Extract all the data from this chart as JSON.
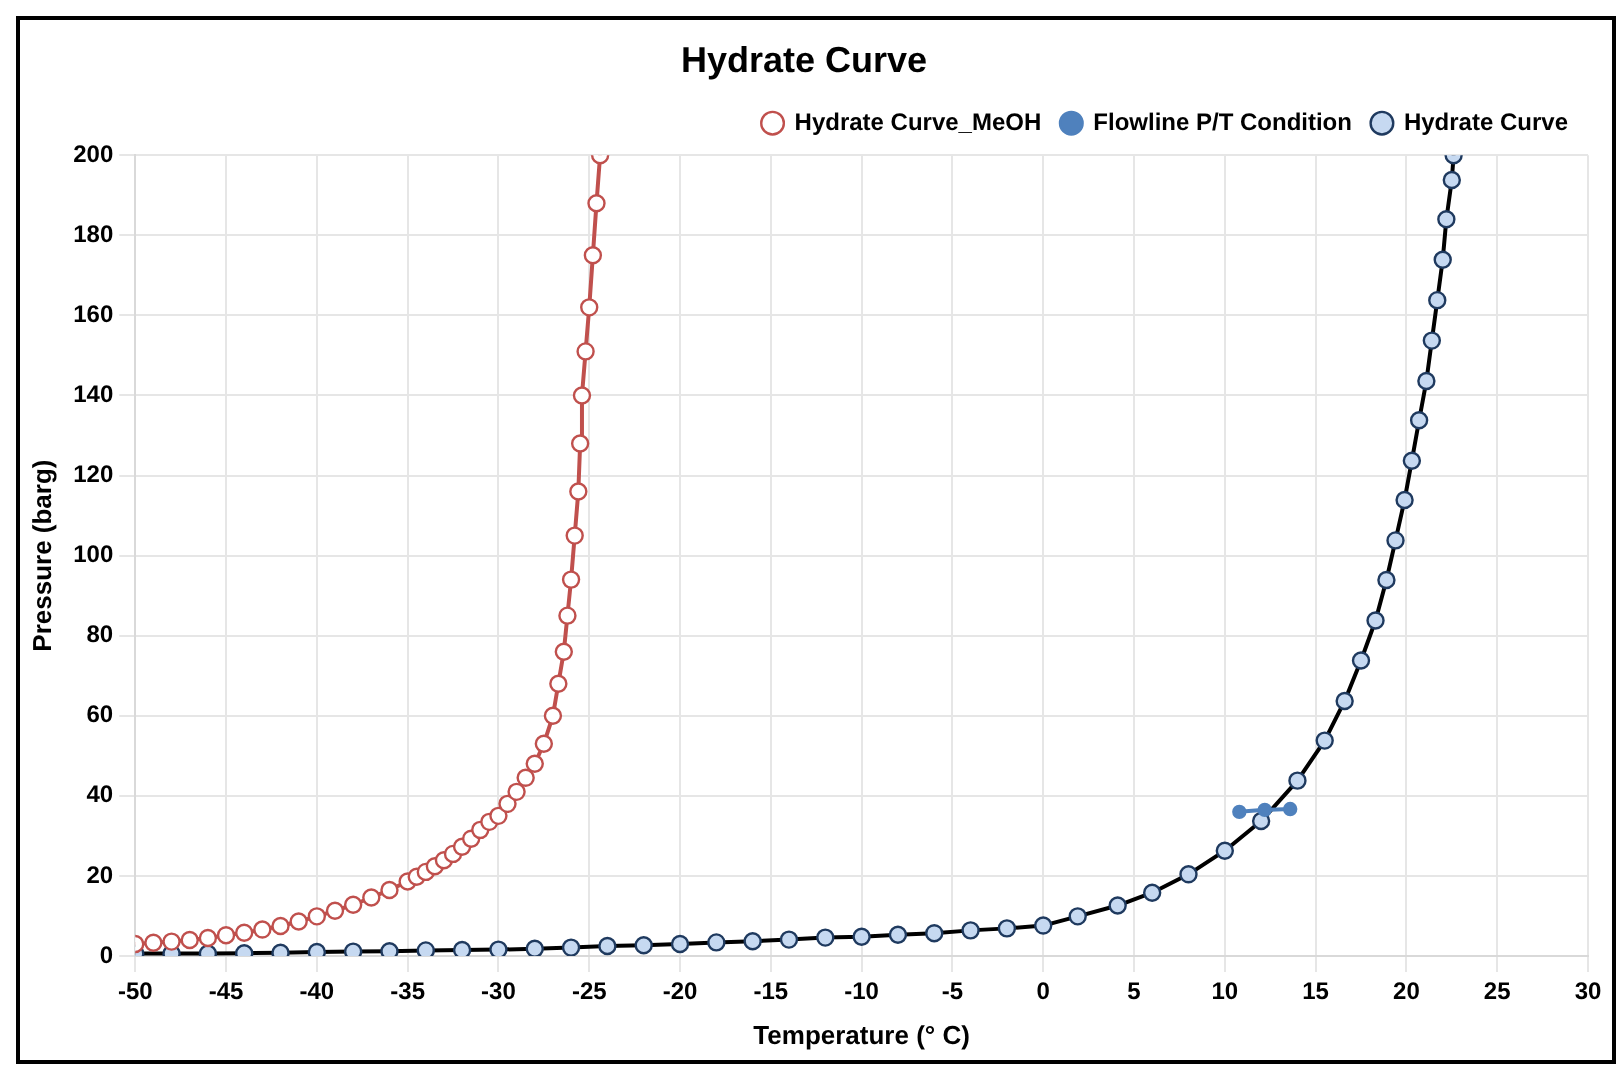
{
  "chart_data": {
    "type": "line",
    "title": "Hydrate Curve",
    "xlabel": "Temperature (° C)",
    "ylabel": "Pressure (barg)",
    "xlim": [
      -50,
      30
    ],
    "xticks": [
      -50,
      -45,
      -40,
      -35,
      -30,
      -25,
      -20,
      -15,
      -10,
      -5,
      0,
      5,
      10,
      15,
      20,
      25,
      30
    ],
    "ylim": [
      0,
      200
    ],
    "yticks": [
      0,
      20,
      40,
      60,
      80,
      100,
      120,
      140,
      160,
      180,
      200
    ],
    "grid": true,
    "legend": "top right",
    "marker": "circle",
    "line_style": "solid",
    "series": [
      {
        "name": "Hydrate Curve_MeOH",
        "color": "#c0504d",
        "x": [
          -50,
          -49,
          -48,
          -47,
          -46,
          -45,
          -44,
          -43,
          -42,
          -41,
          -40,
          -39,
          -38,
          -37,
          -36,
          -35,
          -34.5,
          -34,
          -33.5,
          -33,
          -32.5,
          -32,
          -31.5,
          -31,
          -30.5,
          -30,
          -29.5,
          -29,
          -28.5,
          -28,
          -27.5,
          -27,
          -26.7,
          -26.4,
          -26.2,
          -26,
          -25.8,
          -25.6,
          -25.5,
          -25.4,
          -25.2,
          -25,
          -24.8,
          -24.6,
          -24.4
        ],
        "values": [
          3,
          3.3,
          3.6,
          4,
          4.5,
          5.2,
          5.8,
          6.6,
          7.5,
          8.6,
          9.9,
          11.3,
          12.8,
          14.6,
          16.5,
          18.6,
          19.8,
          21,
          22.4,
          23.9,
          25.5,
          27.3,
          29.3,
          31.5,
          33.5,
          35,
          38,
          41,
          44.5,
          48,
          53,
          60,
          68,
          76,
          85,
          94,
          105,
          116,
          128,
          140,
          151,
          162,
          175,
          188,
          200
        ]
      },
      {
        "name": "Flowline P/T Condition",
        "color": "#4f81bd",
        "x": [
          10.8,
          12.2,
          13.6
        ],
        "values": [
          36,
          36.5,
          36.7
        ]
      },
      {
        "name": "Hydrate Curve",
        "color": "#000000",
        "x": [
          -50,
          -48,
          -46,
          -44,
          -42,
          -40,
          -38,
          -36,
          -34,
          -32,
          -30,
          -28,
          -26,
          -24,
          -22,
          -20,
          -18,
          -16,
          -14,
          -12,
          -10,
          -8,
          -6,
          -4,
          -2,
          0,
          1.9,
          4.1,
          6,
          8,
          10,
          12,
          14,
          15.5,
          16.6,
          17.5,
          18.3,
          18.9,
          19.4,
          19.9,
          20.3,
          20.7,
          21.1,
          21.4,
          21.7,
          22,
          22.2,
          22.5,
          22.6
        ],
        "values": [
          0.6,
          0.6,
          0.6,
          0.7,
          0.8,
          1,
          1.1,
          1.2,
          1.4,
          1.5,
          1.6,
          1.8,
          2.1,
          2.5,
          2.7,
          3,
          3.4,
          3.7,
          4.1,
          4.6,
          4.8,
          5.3,
          5.7,
          6.4,
          6.9,
          7.6,
          9.9,
          12.6,
          15.8,
          20.4,
          26.3,
          33.7,
          43.8,
          53.8,
          63.7,
          73.8,
          83.8,
          93.9,
          103.8,
          113.9,
          123.7,
          133.8,
          143.6,
          153.7,
          163.8,
          173.9,
          184,
          193.8,
          200
        ]
      }
    ]
  }
}
